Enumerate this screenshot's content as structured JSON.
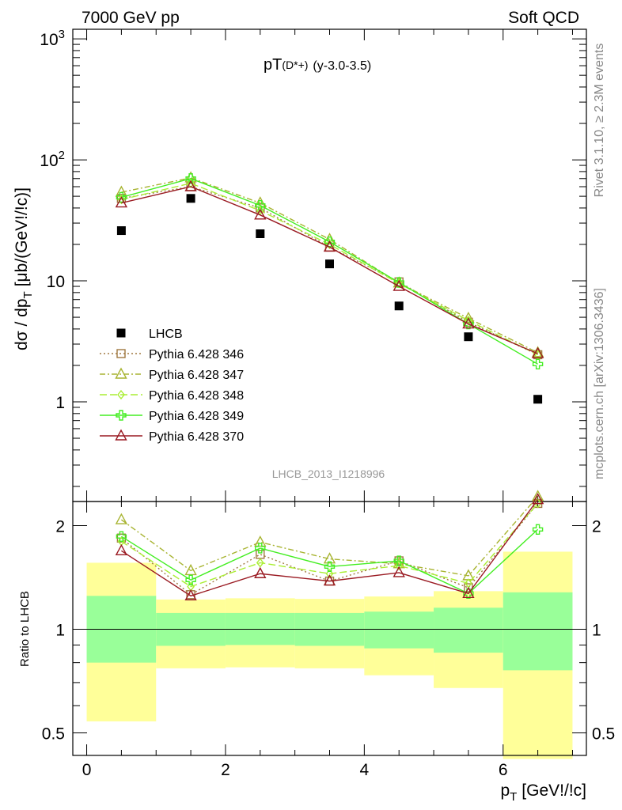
{
  "header": {
    "left": "7000 GeV pp",
    "right": "Soft QCD"
  },
  "side": {
    "top": "Rivet 3.1.10, ≥ 2.3M events",
    "bottom": "mcplots.cern.ch [arXiv:1306.3436]"
  },
  "chart_data": {
    "type": "scatter",
    "title_main": "pT",
    "title_sup": "(D*+)",
    "title_rest": "(y-3.0-3.5)",
    "ylabel_main": "dσ / dp",
    "ylabel_sub": "T",
    "ylabel_unit": "[μb/(GeV!/!c)]",
    "xlabel_main": "p",
    "xlabel_sub": "T",
    "xlabel_unit": "[GeV!/!c]",
    "ratio_label": "Ratio to LHCB",
    "analysis_tag": "LHCB_2013_I1218996",
    "xlim": [
      -0.2,
      7.2
    ],
    "ylim": [
      0.15,
      1200
    ],
    "ratio_ylim": [
      0.43,
      2.35
    ],
    "y_scale": "log",
    "x_ticks": [
      "0",
      "2",
      "4",
      "6"
    ],
    "y_ticks": [
      "1",
      "10",
      "10^2",
      "10^3"
    ],
    "ratio_ticks": [
      "0.5",
      "1",
      "2"
    ],
    "legend_position": "left-middle",
    "x": [
      0.5,
      1.5,
      2.5,
      3.5,
      4.5,
      5.5,
      6.5
    ],
    "data": {
      "name": "LHCB",
      "color": "#000000",
      "values": [
        26,
        48,
        24.5,
        13.8,
        6.2,
        3.45,
        1.05
      ],
      "bands": [
        {
          "x0": 0,
          "x1": 1,
          "g": [
            0.8,
            1.25
          ],
          "y": [
            0.54,
            1.56
          ]
        },
        {
          "x0": 1,
          "x1": 2,
          "g": [
            0.895,
            1.115
          ],
          "y": [
            0.77,
            1.22
          ]
        },
        {
          "x0": 2,
          "x1": 3,
          "g": [
            0.9,
            1.115
          ],
          "y": [
            0.775,
            1.23
          ]
        },
        {
          "x0": 3,
          "x1": 4,
          "g": [
            0.895,
            1.115
          ],
          "y": [
            0.77,
            1.225
          ]
        },
        {
          "x0": 4,
          "x1": 5,
          "g": [
            0.88,
            1.125
          ],
          "y": [
            0.735,
            1.245
          ]
        },
        {
          "x0": 5,
          "x1": 6,
          "g": [
            0.855,
            1.155
          ],
          "y": [
            0.675,
            1.29
          ]
        },
        {
          "x0": 6,
          "x1": 7,
          "g": [
            0.76,
            1.28
          ],
          "y": [
            0.42,
            1.68
          ]
        }
      ]
    },
    "series": [
      {
        "name": "Pythia 6.428 346",
        "color": "#a07840",
        "marker": "square",
        "dash": "2,3",
        "values": [
          48,
          60,
          40,
          19,
          9.8,
          4.55,
          2.45
        ],
        "ratio": [
          1.84,
          1.26,
          1.65,
          1.38,
          1.58,
          1.32,
          2.32
        ]
      },
      {
        "name": "Pythia 6.428 347",
        "color": "#a8b432",
        "marker": "triangle",
        "dash": "7,3,2,3",
        "values": [
          54,
          71,
          44,
          22,
          9.6,
          4.9,
          2.55
        ],
        "ratio": [
          2.08,
          1.48,
          1.79,
          1.6,
          1.55,
          1.43,
          2.43
        ]
      },
      {
        "name": "Pythia 6.428 348",
        "color": "#aaee33",
        "marker": "diamond",
        "dash": "9,4",
        "values": [
          47,
          64,
          38,
          20,
          9.5,
          4.7,
          2.45
        ],
        "ratio": [
          1.8,
          1.33,
          1.56,
          1.45,
          1.53,
          1.36,
          2.32
        ]
      },
      {
        "name": "Pythia 6.428 349",
        "color": "#44ee22",
        "marker": "cross",
        "dash": "",
        "values": [
          49,
          70,
          42,
          21,
          9.7,
          4.4,
          2.05
        ],
        "ratio": [
          1.86,
          1.39,
          1.72,
          1.52,
          1.58,
          1.27,
          1.95
        ]
      },
      {
        "name": "Pythia 6.428 370",
        "color": "#9a1a22",
        "marker": "triangle",
        "dash": "",
        "values": [
          44,
          60,
          35,
          19,
          9,
          4.4,
          2.5
        ],
        "ratio": [
          1.69,
          1.25,
          1.45,
          1.38,
          1.46,
          1.27,
          2.38
        ]
      }
    ]
  }
}
